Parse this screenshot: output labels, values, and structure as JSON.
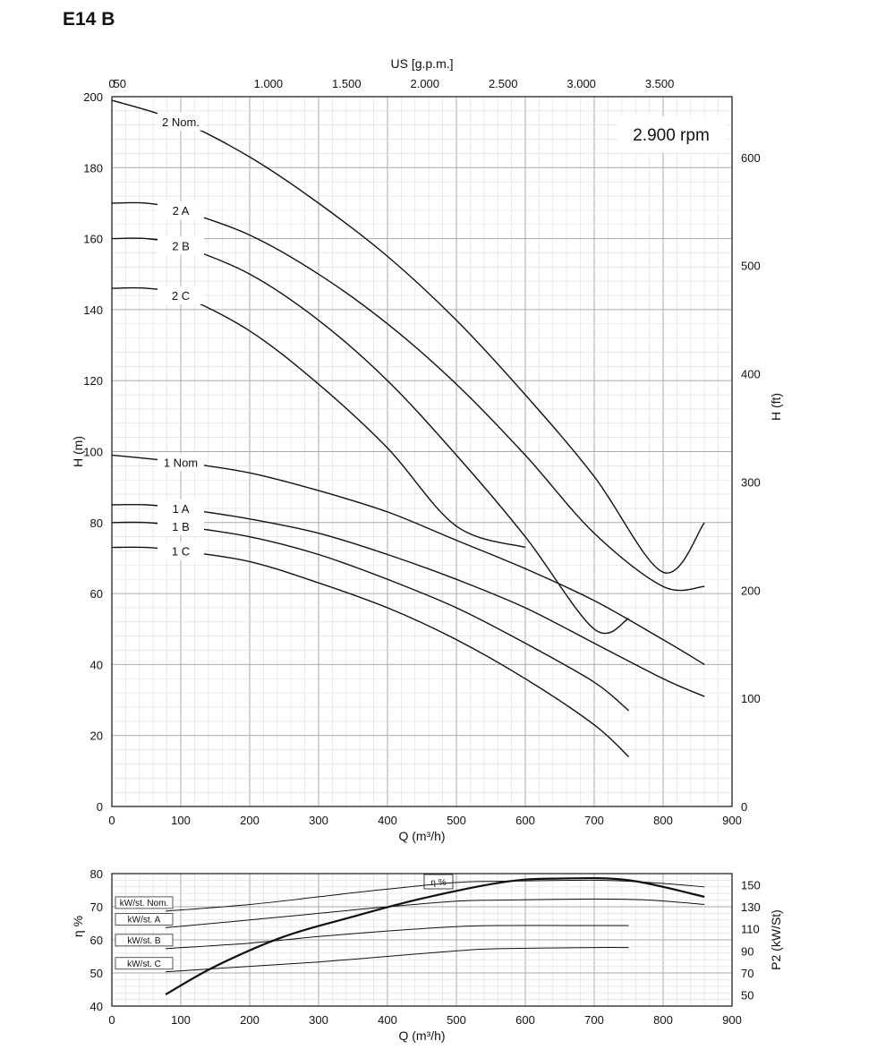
{
  "title": "E14 B",
  "chart_data": [
    {
      "type": "line",
      "name": "head",
      "annotation": "2.900 rpm",
      "xlabel": "Q (m³/h)",
      "ylabel": "H (m)",
      "x2label": "US [g.p.m.]",
      "y2label": "H (ft)",
      "xlim": [
        0,
        900
      ],
      "ylim": [
        0,
        200
      ],
      "xticks": [
        0,
        100,
        200,
        300,
        400,
        500,
        600,
        700,
        800,
        900
      ],
      "yticks": [
        0,
        20,
        40,
        60,
        80,
        100,
        120,
        140,
        160,
        180,
        200
      ],
      "x2ticks": [
        {
          "label": "0",
          "value": 0
        },
        {
          "label": "50",
          "value": 50
        },
        {
          "label": "1.000",
          "value": 1000
        },
        {
          "label": "1.500",
          "value": 1500
        },
        {
          "label": "2.000",
          "value": 2000
        },
        {
          "label": "2.500",
          "value": 2500
        },
        {
          "label": "3.000",
          "value": 3000
        },
        {
          "label": "3.500",
          "value": 3500
        }
      ],
      "y2ticks": [
        0,
        100,
        200,
        300,
        400,
        500,
        600
      ],
      "grid": true,
      "series": [
        {
          "name": "2 Nom.",
          "x": [
            0,
            100,
            200,
            300,
            400,
            500,
            600,
            700,
            800,
            860
          ],
          "y": [
            199,
            193,
            183,
            170,
            155,
            137,
            116,
            93,
            66,
            80
          ]
        },
        {
          "name": "2 A",
          "x": [
            0,
            50,
            100,
            200,
            300,
            400,
            500,
            600,
            700,
            800,
            860
          ],
          "y": [
            170,
            170,
            168,
            161,
            150,
            136,
            119,
            99,
            77,
            62,
            62
          ]
        },
        {
          "name": "2 B",
          "x": [
            0,
            50,
            100,
            200,
            300,
            400,
            500,
            600,
            700,
            750
          ],
          "y": [
            160,
            160,
            158,
            150,
            137,
            120,
            99,
            76,
            50,
            53
          ]
        },
        {
          "name": "2 C",
          "x": [
            0,
            50,
            100,
            200,
            300,
            400,
            500,
            600
          ],
          "y": [
            146,
            146,
            144,
            134,
            119,
            101,
            79,
            73
          ]
        },
        {
          "name": "1 Nom",
          "x": [
            0,
            100,
            200,
            300,
            400,
            500,
            600,
            700,
            800,
            860
          ],
          "y": [
            99,
            97,
            94,
            89,
            83,
            75,
            67,
            58,
            47,
            40
          ]
        },
        {
          "name": "1 A",
          "x": [
            0,
            50,
            100,
            200,
            300,
            400,
            500,
            600,
            700,
            800,
            860
          ],
          "y": [
            85,
            85,
            84,
            81,
            77,
            71,
            64,
            56,
            46,
            36,
            31
          ]
        },
        {
          "name": "1 B",
          "x": [
            0,
            50,
            100,
            200,
            300,
            400,
            500,
            600,
            700,
            750
          ],
          "y": [
            80,
            80,
            79,
            76,
            71,
            64,
            56,
            46,
            35,
            27
          ]
        },
        {
          "name": "1 C",
          "x": [
            0,
            50,
            100,
            200,
            300,
            400,
            500,
            600,
            700,
            750
          ],
          "y": [
            73,
            73,
            72,
            69,
            63,
            56,
            47,
            36,
            23,
            14
          ]
        }
      ]
    },
    {
      "type": "line",
      "name": "efficiency-power",
      "xlabel": "Q (m³/h)",
      "ylabel": "η %",
      "y2label": "P2 (kW/St)",
      "legend_label": "η %",
      "xlim": [
        0,
        900
      ],
      "ylim": [
        40,
        80
      ],
      "y2lim": [
        50,
        160
      ],
      "xticks": [
        0,
        100,
        200,
        300,
        400,
        500,
        600,
        700,
        800,
        900
      ],
      "yticks": [
        40,
        50,
        60,
        70,
        80
      ],
      "y2ticks": [
        50,
        70,
        90,
        110,
        130,
        150
      ],
      "grid": true,
      "efficiency": {
        "x": [
          78,
          150,
          250,
          350,
          450,
          570,
          650,
          750,
          860
        ],
        "y": [
          43.5,
          52,
          61,
          67,
          72.5,
          77.5,
          78.5,
          78,
          73
        ]
      },
      "power_series": [
        {
          "name": "kW/st. Nom.",
          "x": [
            78,
            200,
            300,
            400,
            500,
            560,
            700,
            780,
            860
          ],
          "y": [
            126,
            132,
            139,
            146,
            152,
            153,
            154,
            152,
            148
          ]
        },
        {
          "name": "kW/st. A",
          "x": [
            78,
            200,
            300,
            400,
            500,
            560,
            700,
            780,
            860
          ],
          "y": [
            111,
            118,
            124,
            130,
            135,
            136,
            137,
            136,
            132
          ]
        },
        {
          "name": "kW/st. B",
          "x": [
            78,
            200,
            300,
            400,
            500,
            560,
            700,
            750
          ],
          "y": [
            92,
            97,
            103,
            108,
            112,
            113,
            113,
            113
          ]
        },
        {
          "name": "kW/st. C",
          "x": [
            78,
            200,
            300,
            400,
            500,
            560,
            700,
            750
          ],
          "y": [
            71,
            76,
            80,
            85,
            90,
            92,
            93,
            93
          ]
        }
      ]
    }
  ]
}
